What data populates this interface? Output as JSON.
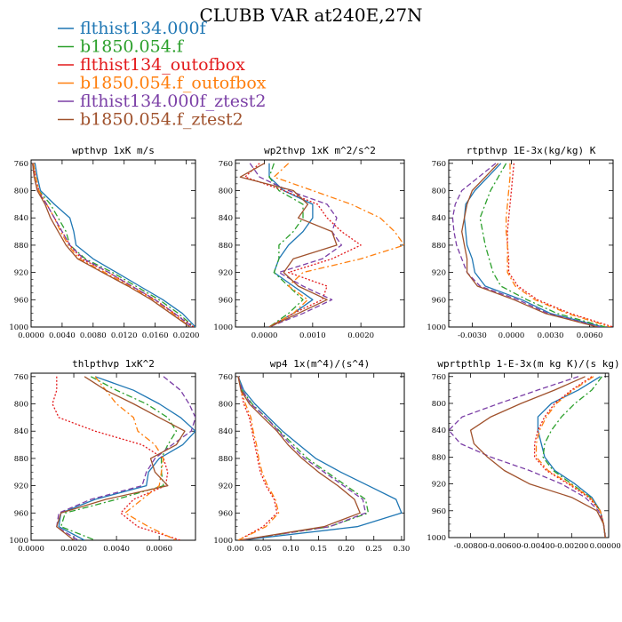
{
  "title": "CLUBB VAR at240E,27N",
  "series": [
    {
      "name": "flthist134.000f",
      "color": "#1f77b4",
      "dash": "solid"
    },
    {
      "name": "b1850.054.f",
      "color": "#2ca02c",
      "dash": "dashdot"
    },
    {
      "name": "flthist134_outofbox",
      "color": "#e31a1c",
      "dash": "dotted"
    },
    {
      "name": "b1850.054.f_outofbox",
      "color": "#ff7f0e",
      "dash": "dashdot"
    },
    {
      "name": "flthist134.000f_ztest2",
      "color": "#7b3fa6",
      "dash": "dashed"
    },
    {
      "name": "b1850.054.f_ztest2",
      "color": "#a0522d",
      "dash": "solid"
    }
  ],
  "chart_data": [
    {
      "type": "line",
      "title": "wpthvp  1xK m/s",
      "xlim": [
        0.0,
        0.0212
      ],
      "ylim": [
        1000,
        755
      ],
      "xticks": [
        0.0,
        0.004,
        0.008,
        0.012,
        0.016,
        0.02
      ],
      "xtick_labels": [
        "0.0000",
        "0.0040",
        "0.0080",
        "0.0120",
        "0.0160",
        "0.0200"
      ],
      "yticks": [
        760,
        800,
        840,
        880,
        920,
        960,
        1000
      ],
      "levels": [
        760,
        780,
        800,
        820,
        840,
        860,
        880,
        900,
        920,
        940,
        960,
        980,
        1000
      ],
      "series": [
        {
          "values": [
            0.0005,
            0.0008,
            0.0012,
            0.003,
            0.005,
            0.0055,
            0.0058,
            0.008,
            0.011,
            0.014,
            0.017,
            0.0195,
            0.0212
          ]
        },
        {
          "values": [
            0.0003,
            0.0006,
            0.001,
            0.0025,
            0.0035,
            0.0045,
            0.005,
            0.007,
            0.0105,
            0.0135,
            0.0165,
            0.019,
            0.021
          ]
        },
        {
          "values": [
            0.0003,
            0.0006,
            0.001,
            0.002,
            0.003,
            0.004,
            0.005,
            0.0065,
            0.01,
            0.013,
            0.016,
            0.0185,
            0.021
          ]
        },
        {
          "values": [
            0.0003,
            0.0006,
            0.001,
            0.002,
            0.003,
            0.0038,
            0.0048,
            0.0062,
            0.0095,
            0.0128,
            0.0158,
            0.0183,
            0.0205
          ]
        },
        {
          "values": [
            0.0002,
            0.0004,
            0.0008,
            0.002,
            0.003,
            0.004,
            0.005,
            0.0068,
            0.01,
            0.013,
            0.016,
            0.0185,
            0.0208
          ]
        },
        {
          "values": [
            0.0002,
            0.0004,
            0.0008,
            0.0018,
            0.0025,
            0.0035,
            0.0045,
            0.006,
            0.0092,
            0.0125,
            0.0155,
            0.018,
            0.0205
          ]
        }
      ]
    },
    {
      "type": "line",
      "title": "wp2thvp  1xK m^2/s^2",
      "xlim": [
        -0.0006,
        0.0029
      ],
      "ylim": [
        1000,
        755
      ],
      "xticks": [
        0.0,
        0.001,
        0.002
      ],
      "xtick_labels": [
        "0.0000",
        "0.0010",
        "0.0020"
      ],
      "yticks": [
        760,
        800,
        840,
        880,
        920,
        960,
        1000
      ],
      "levels": [
        760,
        780,
        800,
        820,
        840,
        860,
        880,
        900,
        920,
        940,
        960,
        980,
        1000
      ],
      "series": [
        {
          "values": [
            0.0001,
            0.0001,
            0.0004,
            0.001,
            0.001,
            0.0008,
            0.0005,
            0.0003,
            0.0002,
            0.0006,
            0.001,
            0.0006,
            0.0001
          ]
        },
        {
          "values": [
            0.0002,
            0.0001,
            0.0003,
            0.0008,
            0.0008,
            0.0006,
            0.0003,
            0.0003,
            0.0002,
            0.0005,
            0.0008,
            0.0005,
            0.0001
          ]
        },
        {
          "values": [
            -0.0001,
            -0.0004,
            0.0004,
            0.0011,
            0.0013,
            0.0016,
            0.002,
            0.0014,
            0.0005,
            0.0013,
            0.0012,
            0.0006,
            0.0001
          ]
        },
        {
          "values": [
            0.0005,
            0.0002,
            0.001,
            0.0018,
            0.0024,
            0.0027,
            0.0029,
            0.002,
            0.0008,
            0.0005,
            0.0009,
            0.0006,
            0.0001
          ]
        },
        {
          "values": [
            -0.0003,
            -0.0001,
            0.0005,
            0.0013,
            0.0015,
            0.0014,
            0.0016,
            0.0012,
            0.0003,
            0.0008,
            0.0014,
            0.0008,
            0.0001
          ]
        },
        {
          "values": [
            0.0,
            -0.0005,
            0.0006,
            0.0009,
            0.0007,
            0.0014,
            0.0015,
            0.0006,
            0.0004,
            0.0007,
            0.0013,
            0.0007,
            0.0001
          ]
        }
      ]
    },
    {
      "type": "line",
      "title": "rtpthvp  1E-3x(kg/kg) K",
      "xlim": [
        -0.0048,
        0.0078
      ],
      "ylim": [
        1000,
        755
      ],
      "xticks": [
        -0.003,
        0.0,
        0.003,
        0.006
      ],
      "xtick_labels": [
        "-0.0030",
        "0.0000",
        "0.0030",
        "0.0060"
      ],
      "yticks": [
        760,
        800,
        840,
        880,
        920,
        960,
        1000
      ],
      "levels": [
        760,
        780,
        800,
        820,
        840,
        860,
        880,
        900,
        920,
        940,
        960,
        980,
        1000
      ],
      "series": [
        {
          "values": [
            -0.0008,
            -0.0018,
            -0.0028,
            -0.0035,
            -0.0036,
            -0.0035,
            -0.0034,
            -0.003,
            -0.0028,
            -0.002,
            0.0008,
            0.003,
            0.007
          ]
        },
        {
          "values": [
            -0.0004,
            -0.001,
            -0.0016,
            -0.002,
            -0.0024,
            -0.0022,
            -0.002,
            -0.0017,
            -0.0014,
            -0.0008,
            0.0012,
            0.0035,
            0.0072
          ]
        },
        {
          "values": [
            0.0002,
            0.0001,
            0.0,
            -0.0001,
            -0.0002,
            -0.0003,
            -0.0003,
            -0.0002,
            -0.0002,
            0.0005,
            0.002,
            0.0045,
            0.0078
          ]
        },
        {
          "values": [
            -0.0001,
            -0.0001,
            -0.0002,
            -0.0003,
            -0.0004,
            -0.0004,
            -0.0003,
            -0.0003,
            -0.0003,
            0.0003,
            0.0018,
            0.0043,
            0.0076
          ]
        },
        {
          "values": [
            -0.0012,
            -0.0025,
            -0.0038,
            -0.0043,
            -0.0045,
            -0.0044,
            -0.0042,
            -0.0038,
            -0.0034,
            -0.0024,
            0.0005,
            0.0028,
            0.0068
          ]
        },
        {
          "values": [
            -0.001,
            -0.002,
            -0.003,
            -0.0034,
            -0.0036,
            -0.0038,
            -0.0036,
            -0.0034,
            -0.0034,
            -0.0026,
            0.0002,
            0.0026,
            0.0066
          ]
        }
      ]
    },
    {
      "type": "line",
      "title": "thlpthvp  1xK^2",
      "xlim": [
        0.0,
        0.0077
      ],
      "ylim": [
        1000,
        755
      ],
      "xticks": [
        0.0,
        0.002,
        0.004,
        0.006
      ],
      "xtick_labels": [
        "0.0000",
        "0.0020",
        "0.0040",
        "0.0060"
      ],
      "yticks": [
        760,
        800,
        840,
        880,
        920,
        960,
        1000
      ],
      "levels": [
        760,
        780,
        800,
        820,
        840,
        860,
        880,
        900,
        920,
        940,
        960,
        980,
        1000
      ],
      "series": [
        {
          "values": [
            0.003,
            0.0048,
            0.006,
            0.007,
            0.0077,
            0.0071,
            0.006,
            0.0055,
            0.0054,
            0.003,
            0.0014,
            0.0013,
            0.0025
          ]
        },
        {
          "values": [
            0.0028,
            0.004,
            0.0054,
            0.0064,
            0.0068,
            0.0064,
            0.0061,
            0.0061,
            0.0062,
            0.004,
            0.0016,
            0.0014,
            0.003
          ]
        },
        {
          "values": [
            0.0012,
            0.0012,
            0.001,
            0.0013,
            0.003,
            0.0052,
            0.0062,
            0.0064,
            0.0063,
            0.0048,
            0.0042,
            0.005,
            0.007
          ]
        },
        {
          "values": [
            0.003,
            0.0035,
            0.004,
            0.0048,
            0.005,
            0.0058,
            0.0062,
            0.0061,
            0.006,
            0.0052,
            0.0044,
            0.0055,
            0.0068
          ]
        },
        {
          "values": [
            0.0062,
            0.007,
            0.0074,
            0.0077,
            0.0075,
            0.0066,
            0.0058,
            0.0054,
            0.0052,
            0.0028,
            0.0013,
            0.0012,
            0.0022
          ]
        },
        {
          "values": [
            0.0025,
            0.0035,
            0.0048,
            0.006,
            0.0072,
            0.0068,
            0.0056,
            0.0058,
            0.0064,
            0.0035,
            0.0014,
            0.0012,
            0.002
          ]
        }
      ]
    },
    {
      "type": "line",
      "title": "wp4  1x(m^4)/(s^4)",
      "xlim": [
        0.0,
        0.305
      ],
      "ylim": [
        1000,
        755
      ],
      "xticks": [
        0.0,
        0.05,
        0.1,
        0.15,
        0.2,
        0.25,
        0.3
      ],
      "xtick_labels": [
        "0.00",
        "0.05",
        "0.10",
        "0.15",
        "0.20",
        "0.25",
        "0.30"
      ],
      "yticks": [
        760,
        800,
        840,
        880,
        920,
        960,
        1000
      ],
      "levels": [
        760,
        780,
        800,
        820,
        840,
        860,
        880,
        900,
        920,
        940,
        960,
        980,
        1000
      ],
      "series": [
        {
          "values": [
            0.005,
            0.015,
            0.035,
            0.06,
            0.085,
            0.115,
            0.145,
            0.19,
            0.24,
            0.29,
            0.3,
            0.22,
            0.01
          ]
        },
        {
          "values": [
            0.005,
            0.012,
            0.03,
            0.055,
            0.08,
            0.105,
            0.13,
            0.165,
            0.2,
            0.235,
            0.24,
            0.17,
            0.008
          ]
        },
        {
          "values": [
            0.005,
            0.01,
            0.015,
            0.025,
            0.03,
            0.035,
            0.04,
            0.045,
            0.055,
            0.07,
            0.075,
            0.05,
            0.005
          ]
        },
        {
          "values": [
            0.005,
            0.01,
            0.018,
            0.028,
            0.032,
            0.038,
            0.042,
            0.048,
            0.058,
            0.072,
            0.078,
            0.055,
            0.005
          ]
        },
        {
          "values": [
            0.005,
            0.012,
            0.028,
            0.055,
            0.078,
            0.1,
            0.125,
            0.16,
            0.195,
            0.23,
            0.235,
            0.17,
            0.008
          ]
        },
        {
          "values": [
            0.005,
            0.01,
            0.025,
            0.05,
            0.075,
            0.095,
            0.12,
            0.15,
            0.185,
            0.215,
            0.225,
            0.16,
            0.008
          ]
        }
      ]
    },
    {
      "type": "line",
      "title": "wprtpthlp  1-E-3x(m kg K)/(s kg)",
      "xlim": [
        -0.0093,
        0.0002
      ],
      "ylim": [
        1000,
        755
      ],
      "xticks": [
        -0.008,
        -0.006,
        -0.004,
        -0.002,
        0.0
      ],
      "xtick_labels": [
        "-0.00800",
        "-0.00600",
        "-0.00400",
        "-0.00200",
        "0.00000"
      ],
      "yticks": [
        760,
        800,
        840,
        880,
        920,
        960,
        1000
      ],
      "levels": [
        760,
        780,
        800,
        820,
        840,
        860,
        880,
        900,
        920,
        940,
        960,
        980,
        1000
      ],
      "series": [
        {
          "values": [
            -0.0003,
            -0.0016,
            -0.0032,
            -0.004,
            -0.004,
            -0.0038,
            -0.0036,
            -0.003,
            -0.0018,
            -0.0008,
            -0.0003,
            -0.0001,
            0.0
          ]
        },
        {
          "values": [
            -0.0002,
            -0.0008,
            -0.0018,
            -0.0026,
            -0.0032,
            -0.0036,
            -0.0037,
            -0.0031,
            -0.002,
            -0.0009,
            -0.0003,
            -0.0001,
            0.0
          ]
        },
        {
          "values": [
            -0.0008,
            -0.002,
            -0.003,
            -0.0036,
            -0.004,
            -0.0042,
            -0.0042,
            -0.0035,
            -0.0022,
            -0.001,
            -0.0003,
            -0.0001,
            0.0
          ]
        },
        {
          "values": [
            -0.0007,
            -0.0019,
            -0.0029,
            -0.0035,
            -0.0039,
            -0.0041,
            -0.0041,
            -0.0034,
            -0.0021,
            -0.0009,
            -0.0003,
            -0.0001,
            0.0
          ]
        },
        {
          "values": [
            -0.0016,
            -0.004,
            -0.0063,
            -0.0085,
            -0.0093,
            -0.0086,
            -0.0068,
            -0.0045,
            -0.0026,
            -0.0012,
            -0.0004,
            -0.0001,
            0.0
          ]
        },
        {
          "values": [
            -0.0012,
            -0.003,
            -0.005,
            -0.0068,
            -0.008,
            -0.0078,
            -0.007,
            -0.006,
            -0.0045,
            -0.002,
            -0.0005,
            -0.0001,
            0.0
          ]
        }
      ]
    }
  ]
}
